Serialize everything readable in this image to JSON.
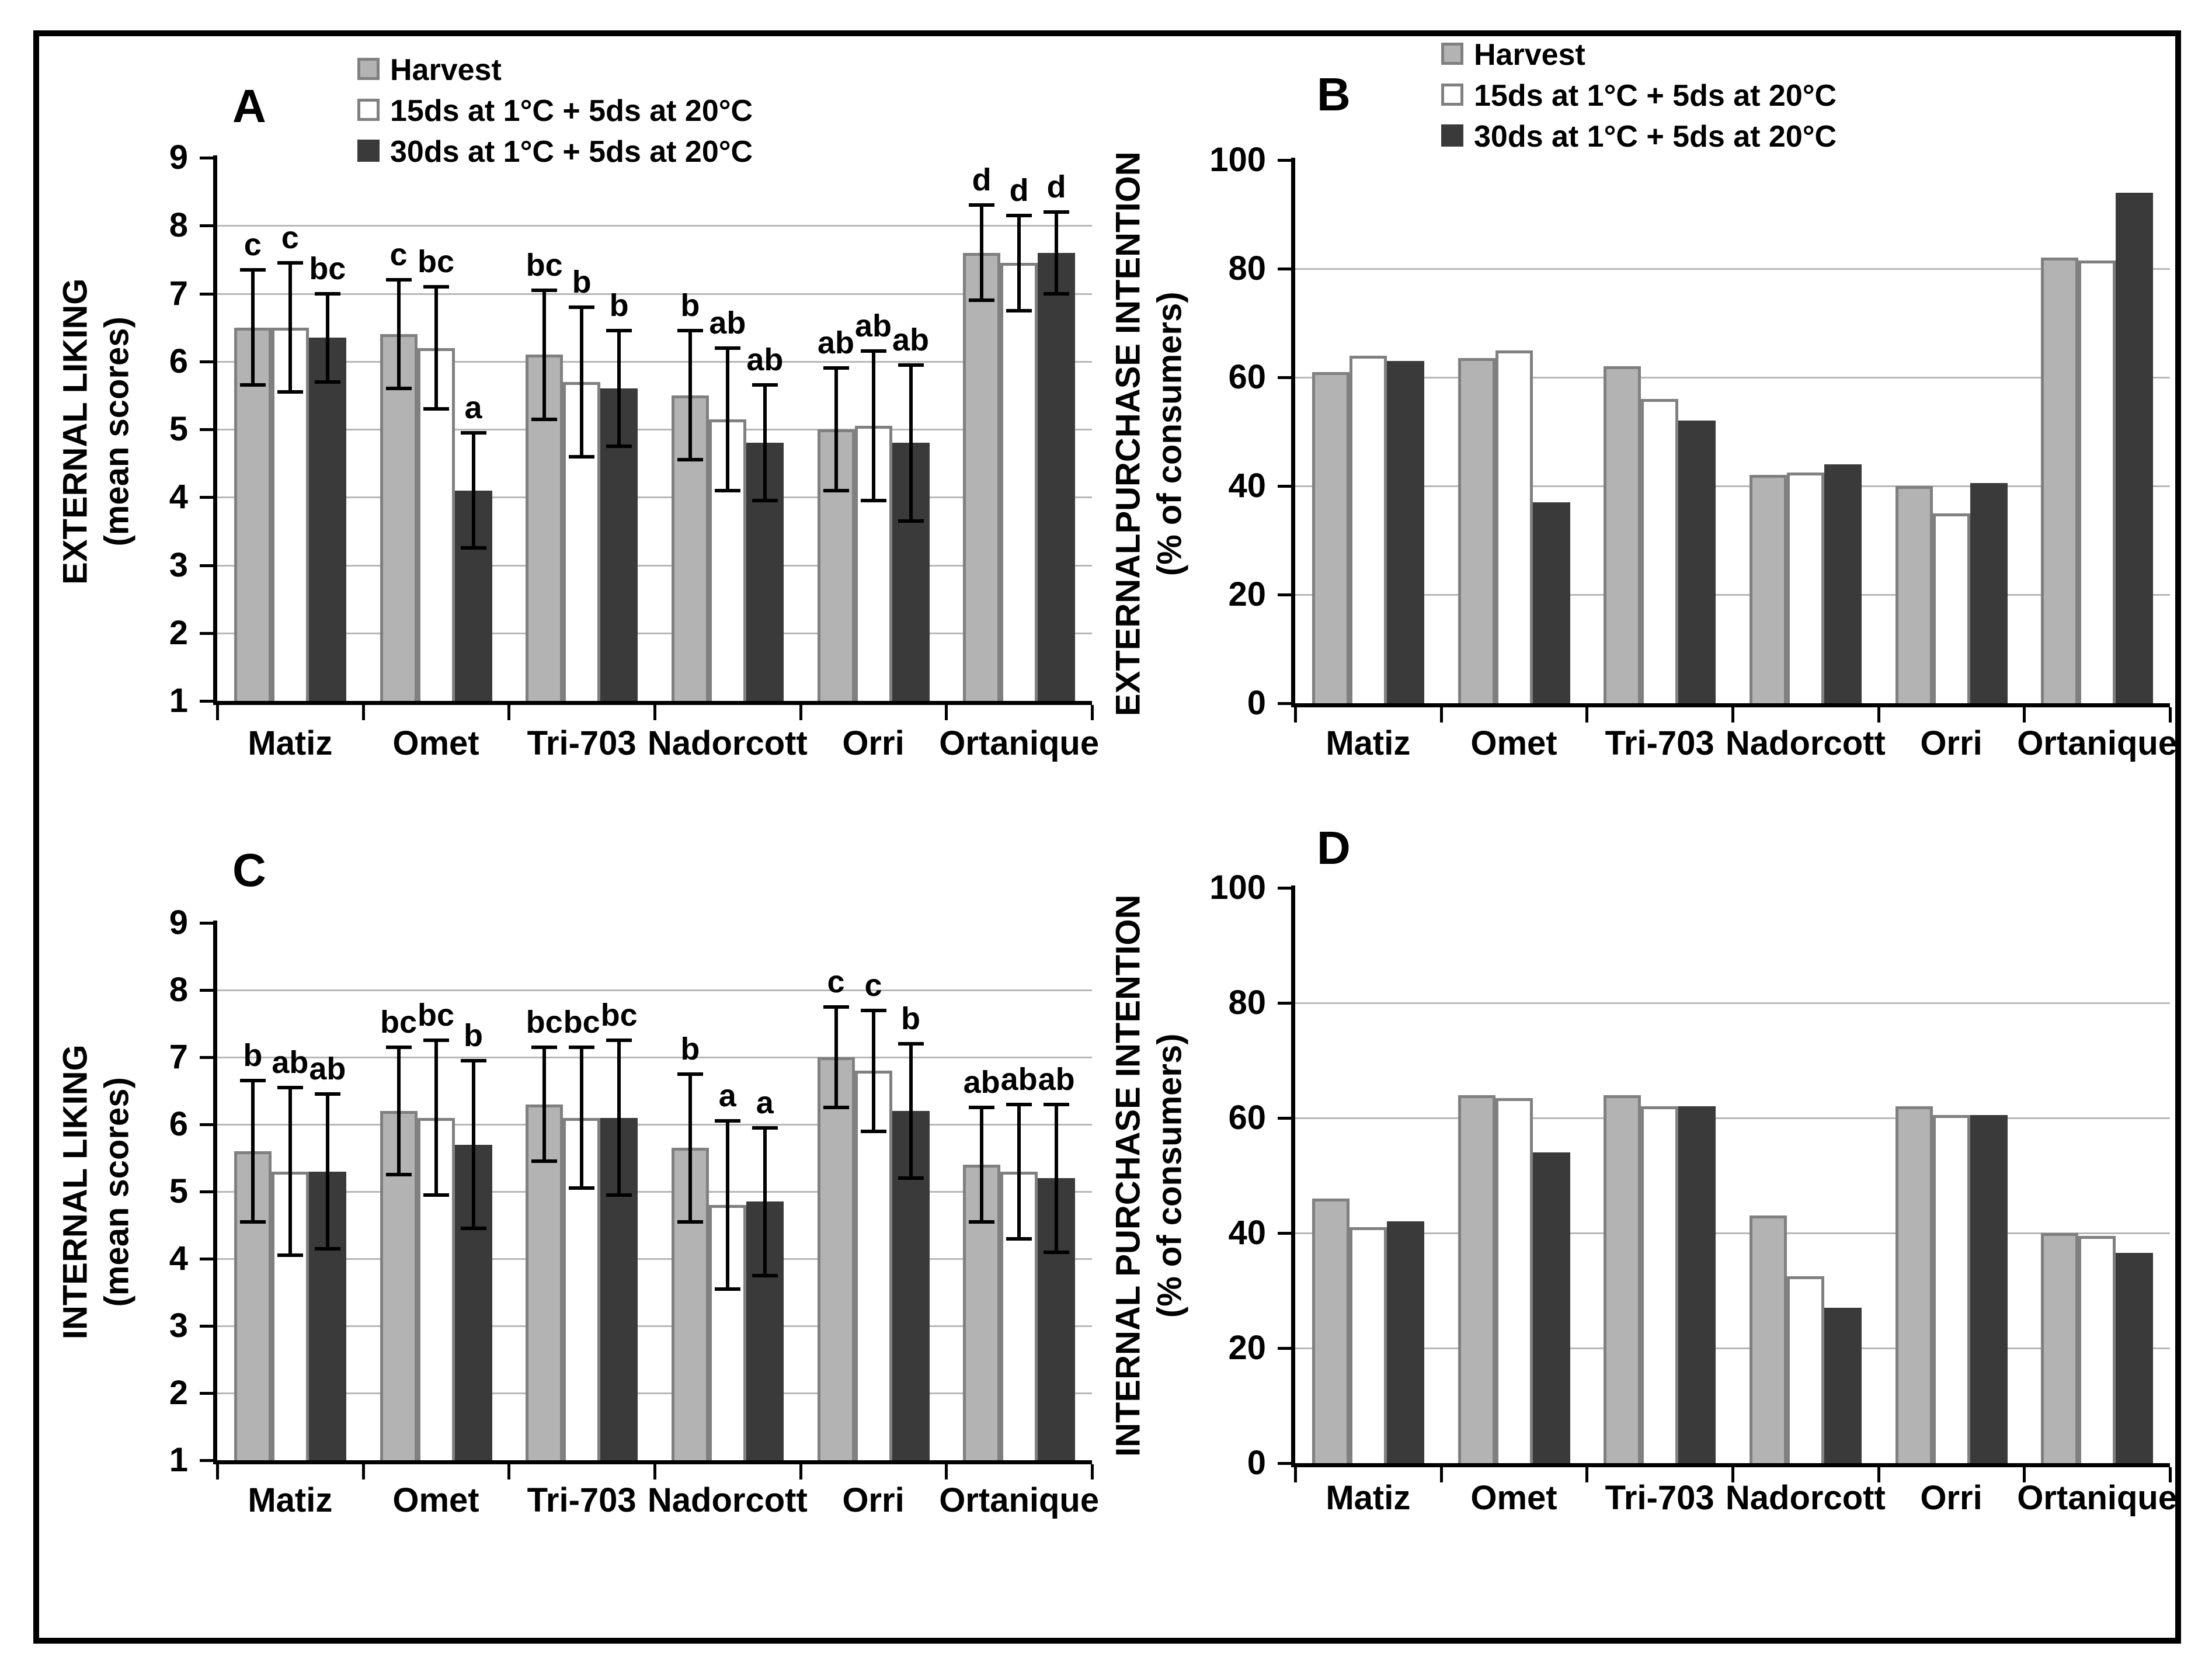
{
  "figure": {
    "background": "#ffffff",
    "frame_border_color": "#000000"
  },
  "colors": {
    "axis": "#000000",
    "gridline": "#b8b8b8",
    "text": "#000000",
    "harvest_fill": "#b3b3b3",
    "harvest_border": "#808080",
    "storage15_fill": "#ffffff",
    "storage15_border": "#808080",
    "storage30_fill": "#3a3a3a",
    "storage30_border": "#3a3a3a"
  },
  "legend": {
    "items": [
      {
        "label": "Harvest",
        "fill": "#b3b3b3",
        "border": "#808080"
      },
      {
        "label": "15ds at 1°C + 5ds at 20°C",
        "fill": "#ffffff",
        "border": "#808080"
      },
      {
        "label": "30ds at 1°C + 5ds at 20°C",
        "fill": "#3a3a3a",
        "border": "#3a3a3a"
      }
    ]
  },
  "chart_data": [
    {
      "panel_label": "A",
      "type": "bar",
      "ylabel": "EXTERNAL LIKING",
      "ylabel_sub": "(mean scores)",
      "ylim": [
        1,
        9
      ],
      "yticks": [
        1,
        2,
        3,
        4,
        5,
        6,
        7,
        8,
        9
      ],
      "grid": true,
      "legend_visible": true,
      "categories": [
        "Matiz",
        "Omet",
        "Tri-703",
        "Nadorcott",
        "Orri",
        "Ortanique"
      ],
      "series": [
        {
          "name": "Harvest",
          "values": [
            6.5,
            6.4,
            6.1,
            5.5,
            5.0,
            7.6
          ],
          "errors": [
            0.85,
            0.8,
            0.95,
            0.95,
            0.9,
            0.7
          ],
          "letters": [
            "c",
            "c",
            "bc",
            "b",
            "ab",
            "d"
          ]
        },
        {
          "name": "15ds at 1°C + 5ds at 20°C",
          "values": [
            6.5,
            6.2,
            5.7,
            5.15,
            5.05,
            7.45
          ],
          "errors": [
            0.95,
            0.9,
            1.1,
            1.05,
            1.1,
            0.7
          ],
          "letters": [
            "c",
            "bc",
            "b",
            "ab",
            "ab",
            "d"
          ]
        },
        {
          "name": "30ds at 1°C + 5ds at 20°C",
          "values": [
            6.35,
            4.1,
            5.6,
            4.8,
            4.8,
            7.6
          ],
          "errors": [
            0.65,
            0.85,
            0.85,
            0.85,
            1.15,
            0.6
          ],
          "letters": [
            "bc",
            "a",
            "b",
            "ab",
            "ab",
            "d"
          ]
        }
      ]
    },
    {
      "panel_label": "B",
      "type": "bar",
      "ylabel": "EXTERNALPURCHASE INTENTION",
      "ylabel_sub": "(% of consumers)",
      "ylim": [
        0,
        100
      ],
      "yticks": [
        0,
        20,
        40,
        60,
        80,
        100
      ],
      "grid": true,
      "legend_visible": true,
      "categories": [
        "Matiz",
        "Omet",
        "Tri-703",
        "Nadorcott",
        "Orri",
        "Ortanique"
      ],
      "series": [
        {
          "name": "Harvest",
          "values": [
            61,
            63.5,
            62,
            42,
            40,
            82
          ]
        },
        {
          "name": "15ds at 1°C + 5ds at 20°C",
          "values": [
            64,
            65,
            56,
            42.5,
            35,
            81.5
          ]
        },
        {
          "name": "30ds at 1°C + 5ds at 20°C",
          "values": [
            63,
            37,
            52,
            44,
            40.5,
            94
          ]
        }
      ]
    },
    {
      "panel_label": "C",
      "type": "bar",
      "ylabel": "INTERNAL LIKING",
      "ylabel_sub": "(mean scores)",
      "ylim": [
        1,
        9
      ],
      "yticks": [
        1,
        2,
        3,
        4,
        5,
        6,
        7,
        8,
        9
      ],
      "grid": true,
      "legend_visible": false,
      "categories": [
        "Matiz",
        "Omet",
        "Tri-703",
        "Nadorcott",
        "Orri",
        "Ortanique"
      ],
      "series": [
        {
          "name": "Harvest",
          "values": [
            5.6,
            6.2,
            6.3,
            5.65,
            7.0,
            5.4
          ],
          "errors": [
            1.05,
            0.95,
            0.85,
            1.1,
            0.75,
            0.85
          ],
          "letters": [
            "b",
            "bc",
            "bc",
            "b",
            "c",
            "ab"
          ]
        },
        {
          "name": "15ds at 1°C + 5ds at 20°C",
          "values": [
            5.3,
            6.1,
            6.1,
            4.8,
            6.8,
            5.3
          ],
          "errors": [
            1.25,
            1.15,
            1.05,
            1.25,
            0.9,
            1.0
          ],
          "letters": [
            "ab",
            "bc",
            "bc",
            "a",
            "c",
            "ab"
          ]
        },
        {
          "name": "30ds at 1°C + 5ds at 20°C",
          "values": [
            5.3,
            5.7,
            6.1,
            4.85,
            6.2,
            5.2
          ],
          "errors": [
            1.15,
            1.25,
            1.15,
            1.1,
            1.0,
            1.1
          ],
          "letters": [
            "ab",
            "b",
            "bc",
            "a",
            "b",
            "ab"
          ]
        }
      ]
    },
    {
      "panel_label": "D",
      "type": "bar",
      "ylabel": "INTERNAL PURCHASE INTENTION",
      "ylabel_sub": "(% of consumers)",
      "ylim": [
        0,
        100
      ],
      "yticks": [
        0,
        20,
        40,
        60,
        80,
        100
      ],
      "grid": true,
      "legend_visible": false,
      "categories": [
        "Matiz",
        "Omet",
        "Tri-703",
        "Nadorcott",
        "Orri",
        "Ortanique"
      ],
      "series": [
        {
          "name": "Harvest",
          "values": [
            46,
            64,
            64,
            43,
            62,
            40
          ]
        },
        {
          "name": "15ds at 1°C + 5ds at 20°C",
          "values": [
            41,
            63.5,
            62,
            32.5,
            60.5,
            39.5
          ]
        },
        {
          "name": "30ds at 1°C + 5ds at 20°C",
          "values": [
            42,
            54,
            62,
            27,
            60.5,
            36.5
          ]
        }
      ]
    }
  ]
}
